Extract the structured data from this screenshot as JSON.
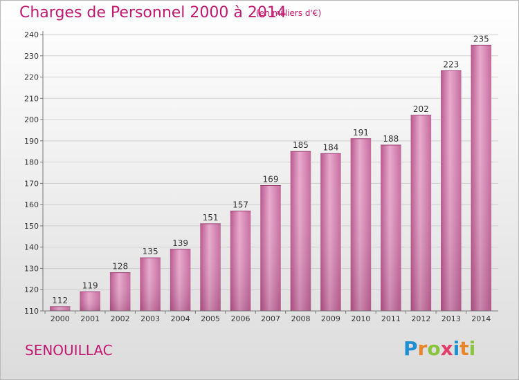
{
  "chart_data": {
    "type": "bar",
    "title": "Charges de Personnel 2000 à 2014",
    "subtitle": "(en milliers d'€)",
    "xlabel": "",
    "ylabel": "",
    "categories": [
      "2000",
      "2001",
      "2002",
      "2003",
      "2004",
      "2005",
      "2006",
      "2007",
      "2008",
      "2009",
      "2010",
      "2011",
      "2012",
      "2013",
      "2014"
    ],
    "values": [
      112,
      119,
      128,
      135,
      139,
      151,
      157,
      169,
      185,
      184,
      191,
      188,
      202,
      223,
      235
    ],
    "ylim": [
      110,
      240
    ],
    "yticks": [
      110,
      120,
      130,
      140,
      150,
      160,
      170,
      180,
      190,
      200,
      210,
      220,
      230,
      240
    ],
    "grid": true,
    "bar_color": "#c8689f",
    "data_labels": true
  },
  "footer": {
    "commune": "SENOUILLAC",
    "logo": "Proxiti",
    "logo_letters": [
      {
        "ch": "P",
        "color": "#1e8fd0"
      },
      {
        "ch": "r",
        "color": "#e8842a"
      },
      {
        "ch": "o",
        "color": "#8ac43f"
      },
      {
        "ch": "x",
        "color": "#e33d6b"
      },
      {
        "ch": "i",
        "color": "#1e8fd0"
      },
      {
        "ch": "t",
        "color": "#e8842a"
      },
      {
        "ch": "i",
        "color": "#8ac43f"
      }
    ]
  },
  "colors": {
    "accent": "#c2176f",
    "bar": "#c8689f",
    "grid": "#cfcfcf"
  }
}
